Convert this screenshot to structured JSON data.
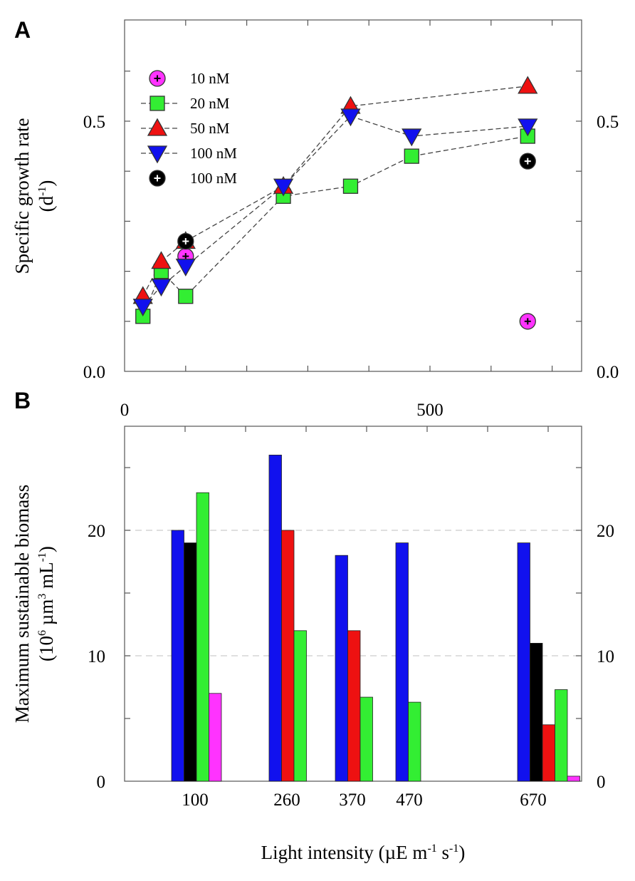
{
  "chart_data": [
    {
      "panel": "A",
      "type": "scatter",
      "lines": "dashed",
      "ylabel_line1": "Specific growth rate",
      "ylabel_line2_base": "(d",
      "ylabel_line2_sup": "-1",
      "ylabel_line2_end": ")",
      "xlabel": "",
      "xlim": [
        0,
        750
      ],
      "ylim": [
        0,
        0.7
      ],
      "x_ticks": [
        "0",
        "500"
      ],
      "y_ticks": [
        "0.0",
        "0.5"
      ],
      "y_ticks_right": [
        "0.0",
        "0.5"
      ],
      "series": [
        {
          "name": "10 nM",
          "marker": "circle-plus",
          "color": "#ff33ff",
          "connected": false,
          "x": [
            100,
            660
          ],
          "y": [
            0.23,
            0.1
          ]
        },
        {
          "name": "20 nM",
          "marker": "square",
          "color": "#33ee33",
          "connected": true,
          "x": [
            30,
            60,
            100,
            260,
            370,
            470,
            660
          ],
          "y": [
            0.11,
            0.2,
            0.15,
            0.35,
            0.37,
            0.43,
            0.47
          ]
        },
        {
          "name": "50 nM",
          "marker": "triangle-up",
          "color": "#ee1111",
          "connected": true,
          "x": [
            30,
            60,
            100,
            260,
            370,
            660
          ],
          "y": [
            0.15,
            0.22,
            0.26,
            0.37,
            0.53,
            0.57
          ]
        },
        {
          "name": "100 nM",
          "marker": "triangle-down",
          "color": "#1111ee",
          "connected": true,
          "x": [
            30,
            60,
            100,
            260,
            370,
            470,
            660
          ],
          "y": [
            0.13,
            0.17,
            0.21,
            0.37,
            0.51,
            0.47,
            0.49
          ]
        },
        {
          "name": "100 nM",
          "marker": "circle-plus",
          "color": "#000000",
          "connected": false,
          "x": [
            100,
            660
          ],
          "y": [
            0.26,
            0.42
          ]
        }
      ]
    },
    {
      "panel": "B",
      "type": "bar",
      "ylabel_line1": "Maximum sustainable biomass",
      "ylabel_line2_a": "(10",
      "ylabel_line2_sup1": "6",
      "ylabel_line2_b": " µm",
      "ylabel_line2_sup2": "3",
      "ylabel_line2_c": " mL",
      "ylabel_line2_sup3": "-1",
      "ylabel_line2_d": ")",
      "xlabel_base": "Light intensity (µE m",
      "xlabel_sup1": "-1",
      "xlabel_mid": " s",
      "xlabel_sup2": "-1",
      "xlabel_end": ")",
      "ylim": [
        0,
        28
      ],
      "y_ticks": [
        "0",
        "10",
        "20"
      ],
      "y_ticks_right": [
        "0",
        "10",
        "20"
      ],
      "grid_y": [
        10,
        20
      ],
      "categories": [
        "100",
        "260",
        "370",
        "470",
        "670"
      ],
      "series": [
        {
          "name": "100 nM",
          "color": "#1111ee",
          "values": [
            20,
            26,
            18,
            19,
            19
          ]
        },
        {
          "name": "100 nM",
          "color": "#000000",
          "values": [
            19,
            null,
            null,
            null,
            11
          ]
        },
        {
          "name": "50 nM",
          "color": "#ee1111",
          "values": [
            null,
            20,
            12,
            null,
            4.5
          ]
        },
        {
          "name": "20 nM",
          "color": "#33ee33",
          "values": [
            23,
            12,
            6.7,
            6.3,
            7.3
          ]
        },
        {
          "name": "10 nM",
          "color": "#ff33ff",
          "values": [
            7,
            null,
            null,
            null,
            0.4
          ]
        }
      ]
    }
  ]
}
